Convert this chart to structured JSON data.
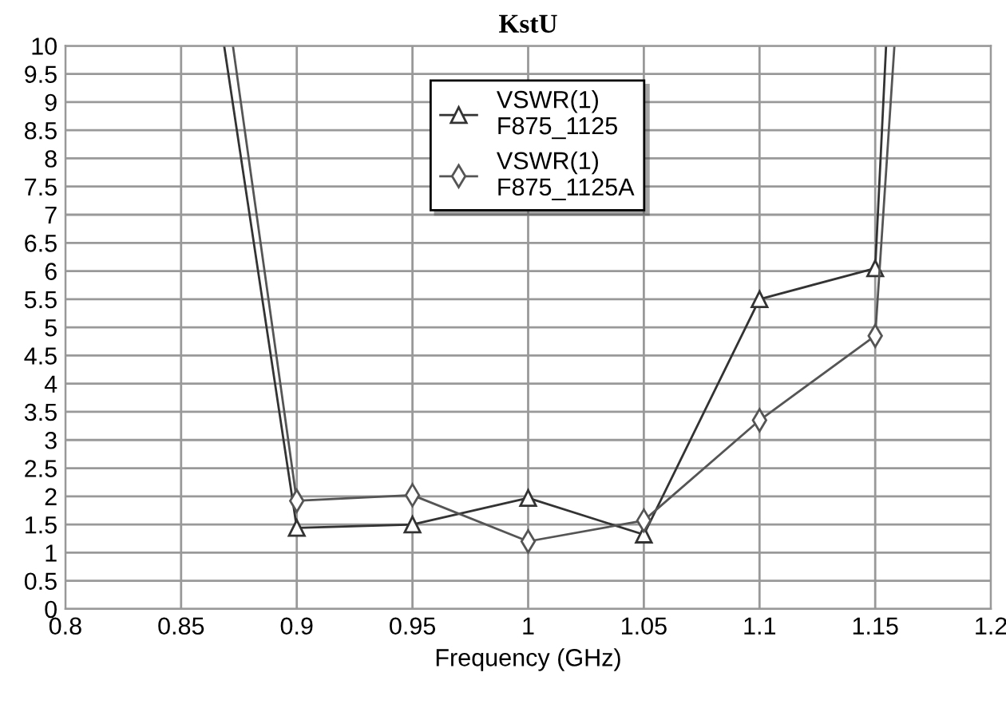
{
  "chart_data": {
    "type": "line",
    "title": "KstU",
    "xlabel": "Frequency (GHz)",
    "xlim": [
      0.8,
      1.2
    ],
    "xticks": [
      0.8,
      0.85,
      0.9,
      0.95,
      1,
      1.05,
      1.1,
      1.15,
      1.2
    ],
    "ylim": [
      0,
      10
    ],
    "yticks": [
      0,
      0.5,
      1,
      1.5,
      2,
      2.5,
      3,
      3.5,
      4,
      4.5,
      5,
      5.5,
      6,
      6.5,
      7,
      7.5,
      8,
      8.5,
      9,
      9.5,
      10
    ],
    "grid": true,
    "legend": "top center",
    "series": [
      {
        "name": "VSWR(1)\nF875_1125",
        "color": "#333333",
        "marker": "triangle",
        "x": [
          0.8686,
          0.9,
          0.95,
          1.0,
          1.05,
          1.1,
          1.15,
          1.1547
        ],
        "values": [
          10,
          1.44,
          1.5,
          1.97,
          1.32,
          5.5,
          6.05,
          10
        ]
      },
      {
        "name": "VSWR(1)\nF875_1125A",
        "color": "#555555",
        "marker": "diamond",
        "x": [
          0.8724,
          0.9,
          0.95,
          1.0,
          1.05,
          1.1,
          1.15,
          1.1583
        ],
        "values": [
          10,
          1.92,
          2.02,
          1.2,
          1.57,
          3.35,
          4.85,
          10
        ]
      }
    ]
  }
}
